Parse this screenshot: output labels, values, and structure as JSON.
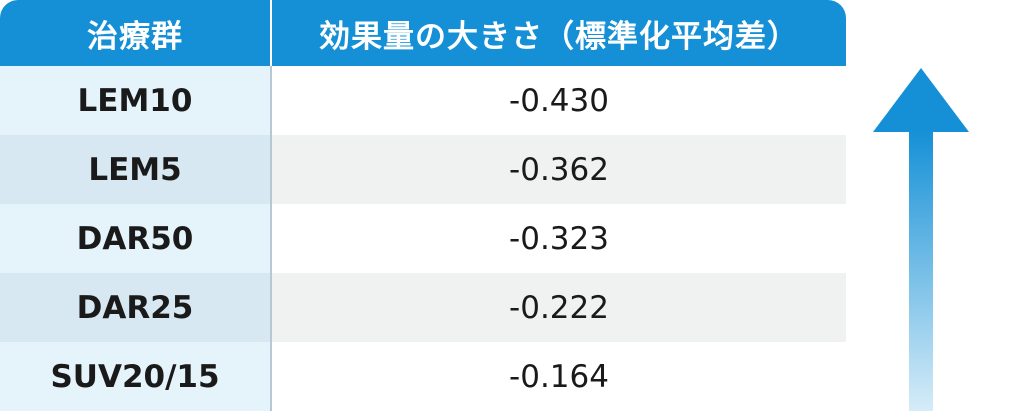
{
  "table": {
    "headers": {
      "group": "治療群",
      "effect": "効果量の大きさ（標準化平均差）"
    },
    "rows": [
      {
        "group": "LEM10",
        "value": "-0.430"
      },
      {
        "group": "LEM5",
        "value": "-0.362"
      },
      {
        "group": "DAR50",
        "value": "-0.323"
      },
      {
        "group": "DAR25",
        "value": "-0.222"
      },
      {
        "group": "SUV20/15",
        "value": "-0.164"
      }
    ]
  },
  "colors": {
    "header_bg": "#1590d6",
    "arrow_top": "#1590d6",
    "arrow_bottom": "#d6ecf8"
  },
  "arrow": {
    "direction": "up"
  }
}
